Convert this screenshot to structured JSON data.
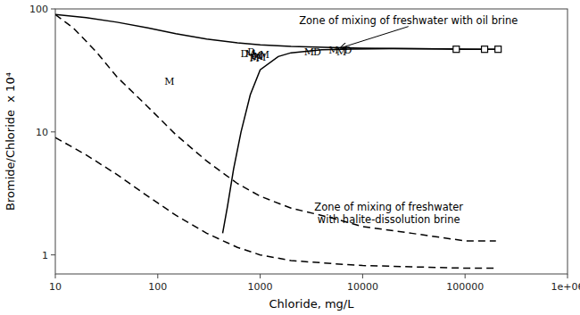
{
  "chart_data": {
    "type": "line",
    "log": true,
    "color": "#000000",
    "xlabel": "Chloride, mg/L",
    "ylabel": "Bromide/Chloride  x 10⁴",
    "xlim": [
      10,
      1000000
    ],
    "ylim": [
      0.7,
      100
    ],
    "xticks": [
      10,
      100,
      1000,
      10000,
      100000,
      {
        "value": 1000000,
        "label": "1e+06"
      }
    ],
    "yticks": [
      1,
      10,
      100
    ],
    "grid": false,
    "series": [
      {
        "type": "line",
        "line_style": "solid",
        "x": [
          10,
          20,
          40,
          80,
          150,
          300,
          600,
          1000,
          2000,
          5000,
          10000,
          30000,
          100000,
          200000
        ],
        "values": [
          90,
          85,
          78,
          70,
          63,
          57,
          53,
          51,
          49.5,
          48.5,
          48,
          47.5,
          47,
          47
        ]
      },
      {
        "type": "line",
        "line_style": "solid",
        "x": [
          430,
          480,
          550,
          650,
          800,
          1000,
          1500,
          2000,
          4000,
          8000,
          20000,
          60000,
          150000,
          200000
        ],
        "values": [
          1.5,
          2.5,
          5,
          10,
          20,
          32,
          41,
          44,
          46.5,
          47.2,
          47.5,
          47.3,
          47,
          47
        ]
      },
      {
        "type": "line",
        "line_style": "dashed",
        "x": [
          10,
          15,
          25,
          40,
          80,
          150,
          300,
          600,
          1000,
          2000,
          5000,
          10000,
          30000,
          100000,
          200000
        ],
        "values": [
          90,
          70,
          45,
          28,
          16,
          9.5,
          5.8,
          3.8,
          3.0,
          2.4,
          2.0,
          1.7,
          1.5,
          1.3,
          1.3
        ]
      },
      {
        "type": "line",
        "line_style": "dashed",
        "x": [
          10,
          20,
          40,
          80,
          150,
          300,
          600,
          1000,
          2000,
          5000,
          10000,
          30000,
          100000,
          200000
        ],
        "values": [
          9,
          6.5,
          4.5,
          3.0,
          2.1,
          1.5,
          1.15,
          1.0,
          0.9,
          0.85,
          0.82,
          0.8,
          0.78,
          0.78
        ]
      },
      {
        "type": "scatter",
        "marker": "text",
        "name": "M",
        "x": [
          130,
          800,
          880,
          920,
          960,
          1020,
          1100,
          3000,
          5200,
          6200
        ],
        "values": [
          26,
          43.5,
          40,
          42,
          41,
          40.5,
          43,
          44.5,
          46,
          44.5
        ]
      },
      {
        "type": "scatter",
        "marker": "text",
        "name": "D",
        "x": [
          700,
          820,
          3600,
          7200
        ],
        "values": [
          43.5,
          44.5,
          44.5,
          46
        ]
      },
      {
        "type": "scatter",
        "marker": "text",
        "name": "p",
        "x": [
          855
        ],
        "values": [
          42
        ]
      },
      {
        "type": "scatter",
        "marker": "square",
        "x": [
          82000,
          155000,
          210000
        ],
        "values": [
          47,
          47,
          47
        ]
      }
    ],
    "annotations": [
      {
        "text": "Zone of mixing of freshwater with oil brine",
        "x": 28000,
        "y": 72,
        "arrow_x": 6000,
        "arrow_y": 48
      },
      {
        "text": "Zone of mixing of freshwater\nwith halite-dissolution brine",
        "x": 18000,
        "y": 2.8
      }
    ]
  }
}
